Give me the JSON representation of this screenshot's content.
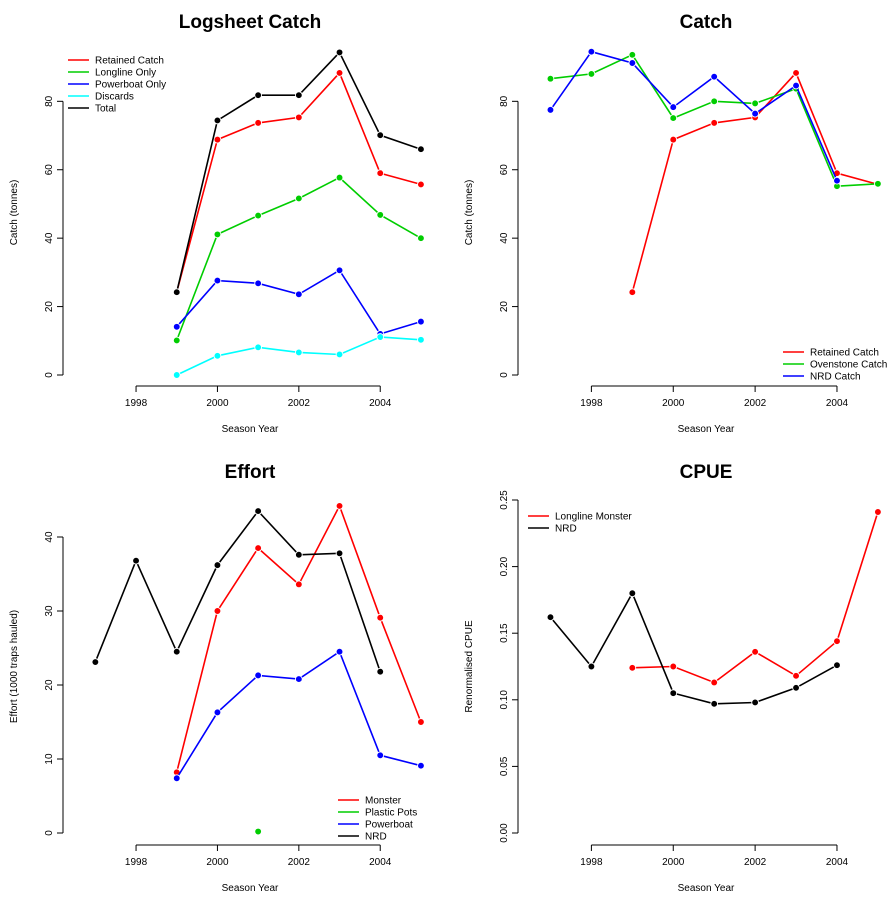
{
  "chart_data": [
    {
      "type": "line",
      "title": "Logsheet Catch",
      "xlabel": "Season Year",
      "ylabel": "Catch (tonnes)",
      "xlim": [
        1996.5,
        2005.1
      ],
      "ylim": [
        0,
        95
      ],
      "x_ticks": [
        1998,
        2000,
        2002,
        2004
      ],
      "y_ticks": [
        0,
        20,
        40,
        60,
        80
      ],
      "legend_position": "top-left",
      "series": [
        {
          "name": "Retained Catch",
          "color": "#ff0000",
          "x": [
            1999,
            2000,
            2001,
            2002,
            2003,
            2004,
            2005
          ],
          "y": [
            24.2,
            68.8,
            73.7,
            75.3,
            88.3,
            59.0,
            55.7
          ]
        },
        {
          "name": "Longline Only",
          "color": "#00cd00",
          "x": [
            1999,
            2000,
            2001,
            2002,
            2003,
            2004,
            2005
          ],
          "y": [
            10.1,
            41.1,
            46.6,
            51.6,
            57.7,
            46.8,
            40.0
          ]
        },
        {
          "name": "Powerboat Only",
          "color": "#0000ff",
          "x": [
            1999,
            2000,
            2001,
            2002,
            2003,
            2004,
            2005
          ],
          "y": [
            14.1,
            27.6,
            26.8,
            23.6,
            30.6,
            12.0,
            15.6
          ]
        },
        {
          "name": "Discards",
          "color": "#00ffff",
          "x": [
            1999,
            2000,
            2001,
            2002,
            2003,
            2004,
            2005
          ],
          "y": [
            0.0,
            5.6,
            8.1,
            6.6,
            6.0,
            11.1,
            10.3
          ]
        },
        {
          "name": "Total",
          "color": "#000000",
          "x": [
            1999,
            2000,
            2001,
            2002,
            2003,
            2004,
            2005
          ],
          "y": [
            24.2,
            74.4,
            81.8,
            81.8,
            94.3,
            70.1,
            66.0
          ]
        }
      ]
    },
    {
      "type": "line",
      "title": "Catch",
      "xlabel": "Season Year",
      "ylabel": "Catch (tonnes)",
      "xlim": [
        1996.5,
        2005.1
      ],
      "ylim": [
        0,
        95
      ],
      "x_ticks": [
        1998,
        2000,
        2002,
        2004
      ],
      "y_ticks": [
        0,
        20,
        40,
        60,
        80
      ],
      "legend_position": "bottom-right",
      "series": [
        {
          "name": "Retained Catch",
          "color": "#ff0000",
          "x": [
            1999,
            2000,
            2001,
            2002,
            2003,
            2004,
            2005
          ],
          "y": [
            24.2,
            68.8,
            73.7,
            75.3,
            88.3,
            59.0,
            55.7
          ]
        },
        {
          "name": "Ovenstone Catch",
          "color": "#00cd00",
          "x": [
            1997,
            1998,
            1999,
            2000,
            2001,
            2002,
            2003,
            2004,
            2005
          ],
          "y": [
            86.6,
            88.0,
            93.6,
            75.1,
            80.0,
            79.4,
            83.7,
            55.2,
            55.9
          ]
        },
        {
          "name": "NRD Catch",
          "color": "#0000ff",
          "x": [
            1997,
            1998,
            1999,
            2000,
            2001,
            2002,
            2003,
            2004
          ],
          "y": [
            77.5,
            94.5,
            91.2,
            78.3,
            87.2,
            76.4,
            84.6,
            56.8
          ]
        }
      ]
    },
    {
      "type": "line",
      "title": "Effort",
      "xlabel": "Season Year",
      "ylabel": "Effort (1000 traps hauled)",
      "xlim": [
        1996.5,
        2005.1
      ],
      "ylim": [
        0,
        45
      ],
      "x_ticks": [
        1998,
        2000,
        2002,
        2004
      ],
      "y_ticks": [
        0,
        10,
        20,
        30,
        40
      ],
      "legend_position": "bottom-right",
      "series": [
        {
          "name": "Monster",
          "color": "#ff0000",
          "x": [
            1999,
            2000,
            2001,
            2002,
            2003,
            2004,
            2005
          ],
          "y": [
            8.2,
            30.0,
            38.5,
            33.6,
            44.2,
            29.1,
            15.0
          ]
        },
        {
          "name": "Plastic Pots",
          "color": "#00cd00",
          "x": [
            2001
          ],
          "y": [
            0.2
          ]
        },
        {
          "name": "Powerboat",
          "color": "#0000ff",
          "x": [
            1999,
            2000,
            2001,
            2002,
            2003,
            2004,
            2005
          ],
          "y": [
            7.4,
            16.3,
            21.3,
            20.8,
            24.5,
            10.5,
            9.1
          ]
        },
        {
          "name": "NRD",
          "color": "#000000",
          "x": [
            1997,
            1998,
            1999,
            2000,
            2001,
            2002,
            2003,
            2004
          ],
          "y": [
            23.1,
            36.8,
            24.5,
            36.2,
            43.5,
            37.6,
            37.8,
            21.8
          ]
        }
      ]
    },
    {
      "type": "line",
      "title": "CPUE",
      "xlabel": "Season Year",
      "ylabel": "Renormalised CPUE",
      "xlim": [
        1996.5,
        2005.1
      ],
      "ylim": [
        0,
        0.25
      ],
      "x_ticks": [
        1998,
        2000,
        2002,
        2004
      ],
      "y_ticks": [
        0.0,
        0.05,
        0.1,
        0.15,
        0.2,
        0.25
      ],
      "legend_position": "top-left",
      "series": [
        {
          "name": "Longline Monster",
          "color": "#ff0000",
          "x": [
            1999,
            2000,
            2001,
            2002,
            2003,
            2004,
            2005
          ],
          "y": [
            0.124,
            0.125,
            0.113,
            0.136,
            0.118,
            0.144,
            0.241
          ]
        },
        {
          "name": "NRD",
          "color": "#000000",
          "x": [
            1997,
            1998,
            1999,
            2000,
            2001,
            2002,
            2003,
            2004
          ],
          "y": [
            0.162,
            0.125,
            0.18,
            0.105,
            0.097,
            0.098,
            0.109,
            0.126
          ]
        }
      ]
    }
  ]
}
